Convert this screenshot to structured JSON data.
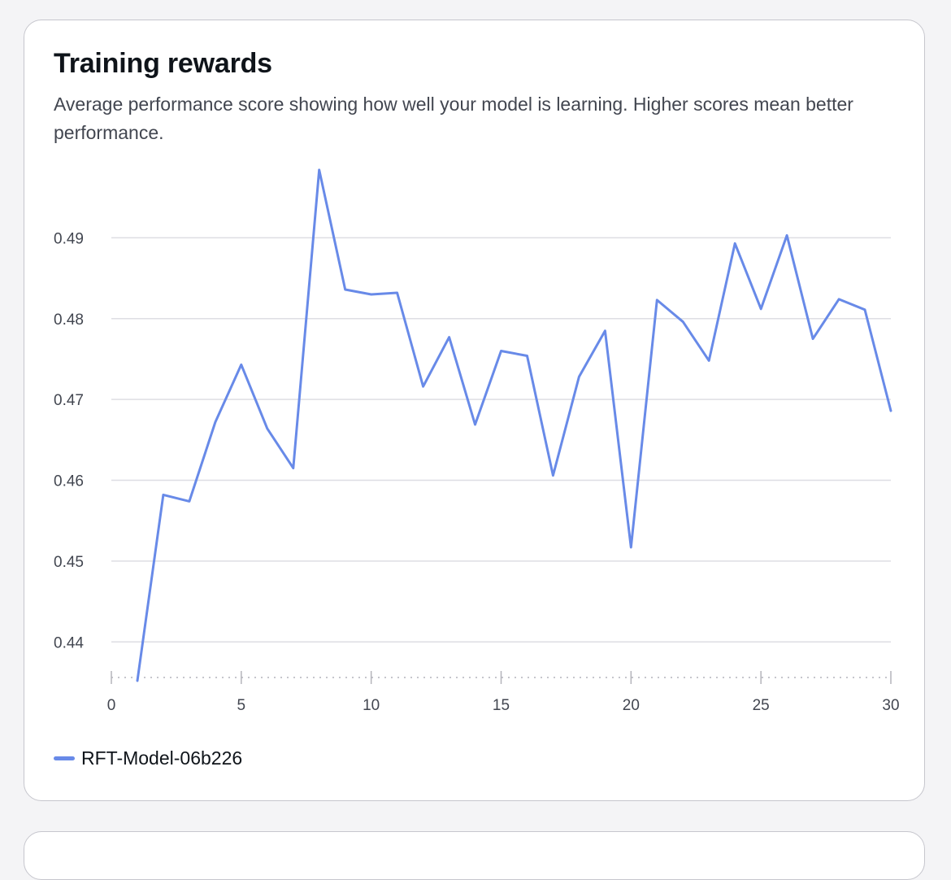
{
  "card": {
    "title": "Training rewards",
    "subtitle": "Average performance score showing how well your model is learning. Higher scores mean better performance."
  },
  "chart_data": {
    "type": "line",
    "title": "Training rewards",
    "xlabel": "",
    "ylabel": "",
    "xlim": [
      0,
      30
    ],
    "ylim": [
      0.4352,
      0.5
    ],
    "x_ticks": [
      0,
      5,
      10,
      15,
      20,
      25,
      30
    ],
    "y_ticks": [
      0.44,
      0.45,
      0.46,
      0.47,
      0.48,
      0.49
    ],
    "y_tick_labels": [
      "0.44",
      "0.45",
      "0.46",
      "0.47",
      "0.48",
      "0.49"
    ],
    "x_tick_labels": [
      "0",
      "5",
      "10",
      "15",
      "20",
      "25",
      "30"
    ],
    "grid": "horizontal",
    "legend_position": "bottom-left",
    "series": [
      {
        "name": "RFT-Model-06b226",
        "color": "#688ae8",
        "x": [
          1,
          2,
          3,
          4,
          5,
          6,
          7,
          8,
          9,
          10,
          11,
          12,
          13,
          14,
          15,
          16,
          17,
          18,
          19,
          20,
          21,
          22,
          23,
          24,
          25,
          26,
          27,
          28,
          29,
          30
        ],
        "y": [
          0.4352,
          0.4582,
          0.4574,
          0.4672,
          0.4743,
          0.4664,
          0.4615,
          0.4984,
          0.4836,
          0.483,
          0.4832,
          0.4716,
          0.4777,
          0.4669,
          0.476,
          0.4754,
          0.4606,
          0.4728,
          0.4785,
          0.4517,
          0.4823,
          0.4796,
          0.4748,
          0.4893,
          0.4812,
          0.4903,
          0.4775,
          0.4824,
          0.4811,
          0.4686
        ]
      }
    ]
  }
}
